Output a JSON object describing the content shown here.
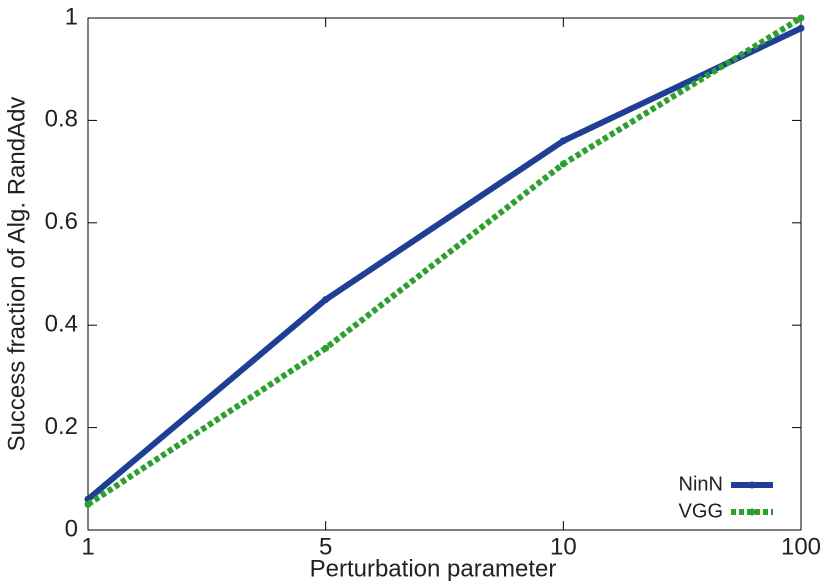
{
  "chart_data": {
    "type": "line",
    "x_label": "Perturbation parameter",
    "y_label": "Success fraction of Alg. RandAdv",
    "categories": [
      "1",
      "5",
      "10",
      "100"
    ],
    "series": [
      {
        "name": "NinN",
        "color": "#1f3f94",
        "style": "solid",
        "values": [
          0.06,
          0.45,
          0.76,
          0.98
        ]
      },
      {
        "name": "VGG",
        "color": "#2ca02c",
        "style": "dotted",
        "values": [
          0.05,
          0.355,
          0.715,
          1.0
        ]
      }
    ],
    "ylim": [
      0,
      1
    ],
    "yticks": [
      0,
      0.2,
      0.4,
      0.6,
      0.8,
      1
    ],
    "legend": "lower-right",
    "grid": false
  }
}
